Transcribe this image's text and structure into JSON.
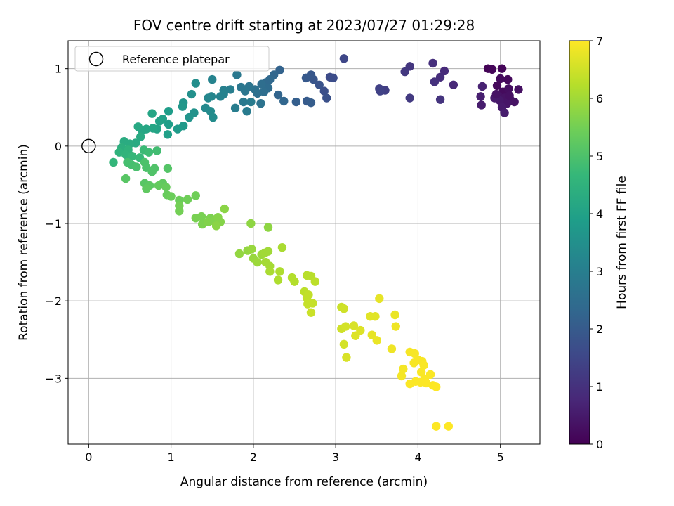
{
  "chart_data": {
    "type": "scatter",
    "title": "FOV centre drift starting at 2023/07/27 01:29:28",
    "xlabel": "Angular distance from reference (arcmin)",
    "ylabel": "Rotation from reference (arcmin)",
    "colorbar_label": "Hours from first FF file",
    "colormap": "viridis",
    "xlim": [
      -0.25,
      5.48
    ],
    "ylim": [
      -3.85,
      1.36
    ],
    "clim": [
      0,
      7
    ],
    "xticks": [
      "0",
      "1",
      "2",
      "3",
      "4",
      "5"
    ],
    "yticks": [
      "1",
      "0",
      "−1",
      "−2",
      "−3"
    ],
    "colorbar_ticks": [
      "0",
      "1",
      "2",
      "3",
      "4",
      "5",
      "6",
      "7"
    ],
    "grid": true,
    "legend": {
      "location": "upper-left",
      "entries": [
        {
          "label": "Reference platepar",
          "marker": "open-circle",
          "x": 0,
          "y": 0
        }
      ]
    },
    "points": [
      {
        "x": 4.85,
        "y": 1.0,
        "c": 0.05
      },
      {
        "x": 4.9,
        "y": 0.99,
        "c": 0.1
      },
      {
        "x": 5.02,
        "y": 1.0,
        "c": 0.1
      },
      {
        "x": 5.09,
        "y": 0.86,
        "c": 0.15
      },
      {
        "x": 5.0,
        "y": 0.87,
        "c": 0.2
      },
      {
        "x": 4.96,
        "y": 0.78,
        "c": 0.15
      },
      {
        "x": 5.03,
        "y": 0.7,
        "c": 0.2
      },
      {
        "x": 5.1,
        "y": 0.74,
        "c": 0.25
      },
      {
        "x": 5.22,
        "y": 0.73,
        "c": 0.3
      },
      {
        "x": 4.98,
        "y": 0.64,
        "c": 0.3
      },
      {
        "x": 5.05,
        "y": 0.62,
        "c": 0.35
      },
      {
        "x": 5.12,
        "y": 0.6,
        "c": 0.4
      },
      {
        "x": 5.17,
        "y": 0.57,
        "c": 0.35
      },
      {
        "x": 5.08,
        "y": 0.55,
        "c": 0.4
      },
      {
        "x": 4.99,
        "y": 0.59,
        "c": 0.45
      },
      {
        "x": 5.02,
        "y": 0.5,
        "c": 0.5
      },
      {
        "x": 5.05,
        "y": 0.43,
        "c": 0.55
      },
      {
        "x": 4.93,
        "y": 0.62,
        "c": 0.5
      },
      {
        "x": 4.77,
        "y": 0.53,
        "c": 0.55
      },
      {
        "x": 4.76,
        "y": 0.64,
        "c": 0.6
      },
      {
        "x": 4.78,
        "y": 0.77,
        "c": 0.65
      },
      {
        "x": 5.11,
        "y": 0.65,
        "c": 0.3
      },
      {
        "x": 4.95,
        "y": 0.67,
        "c": 0.35
      },
      {
        "x": 4.43,
        "y": 0.79,
        "c": 0.8
      },
      {
        "x": 4.32,
        "y": 0.97,
        "c": 0.85
      },
      {
        "x": 4.27,
        "y": 0.89,
        "c": 0.9
      },
      {
        "x": 4.18,
        "y": 1.07,
        "c": 0.95
      },
      {
        "x": 4.2,
        "y": 0.83,
        "c": 1.0
      },
      {
        "x": 4.27,
        "y": 0.6,
        "c": 1.05
      },
      {
        "x": 3.9,
        "y": 1.03,
        "c": 1.1
      },
      {
        "x": 3.84,
        "y": 0.96,
        "c": 1.15
      },
      {
        "x": 3.9,
        "y": 0.62,
        "c": 1.2
      },
      {
        "x": 3.6,
        "y": 0.72,
        "c": 1.3
      },
      {
        "x": 3.53,
        "y": 0.74,
        "c": 1.35
      },
      {
        "x": 3.54,
        "y": 0.71,
        "c": 1.4
      },
      {
        "x": 3.1,
        "y": 1.13,
        "c": 1.5
      },
      {
        "x": 2.93,
        "y": 0.89,
        "c": 1.6
      },
      {
        "x": 2.97,
        "y": 0.88,
        "c": 1.65
      },
      {
        "x": 2.86,
        "y": 0.71,
        "c": 1.7
      },
      {
        "x": 2.89,
        "y": 0.62,
        "c": 1.75
      },
      {
        "x": 2.8,
        "y": 0.79,
        "c": 1.8
      },
      {
        "x": 2.73,
        "y": 0.86,
        "c": 1.85
      },
      {
        "x": 2.7,
        "y": 0.92,
        "c": 1.9
      },
      {
        "x": 2.64,
        "y": 0.88,
        "c": 1.95
      },
      {
        "x": 2.65,
        "y": 0.58,
        "c": 2.0
      },
      {
        "x": 2.7,
        "y": 0.56,
        "c": 2.05
      },
      {
        "x": 2.52,
        "y": 0.57,
        "c": 2.1
      },
      {
        "x": 2.32,
        "y": 0.98,
        "c": 2.2
      },
      {
        "x": 2.3,
        "y": 0.66,
        "c": 2.25
      },
      {
        "x": 2.37,
        "y": 0.58,
        "c": 2.3
      },
      {
        "x": 2.25,
        "y": 0.92,
        "c": 2.3
      },
      {
        "x": 2.2,
        "y": 0.86,
        "c": 2.35
      },
      {
        "x": 2.15,
        "y": 0.82,
        "c": 2.4
      },
      {
        "x": 2.18,
        "y": 0.75,
        "c": 2.45
      },
      {
        "x": 2.1,
        "y": 0.8,
        "c": 2.5
      },
      {
        "x": 2.13,
        "y": 0.7,
        "c": 2.5
      },
      {
        "x": 2.05,
        "y": 0.68,
        "c": 2.55
      },
      {
        "x": 2.02,
        "y": 0.73,
        "c": 2.6
      },
      {
        "x": 2.09,
        "y": 0.55,
        "c": 2.65
      },
      {
        "x": 1.95,
        "y": 0.77,
        "c": 2.7
      },
      {
        "x": 1.9,
        "y": 0.71,
        "c": 2.75
      },
      {
        "x": 1.85,
        "y": 0.76,
        "c": 2.75
      },
      {
        "x": 1.8,
        "y": 0.92,
        "c": 2.8
      },
      {
        "x": 1.88,
        "y": 0.57,
        "c": 2.85
      },
      {
        "x": 1.92,
        "y": 0.45,
        "c": 2.9
      },
      {
        "x": 1.97,
        "y": 0.57,
        "c": 2.9
      },
      {
        "x": 1.78,
        "y": 0.49,
        "c": 2.95
      },
      {
        "x": 1.72,
        "y": 0.73,
        "c": 3.0
      },
      {
        "x": 1.64,
        "y": 0.72,
        "c": 3.05
      },
      {
        "x": 1.6,
        "y": 0.64,
        "c": 3.1
      },
      {
        "x": 1.64,
        "y": 0.67,
        "c": 3.1
      },
      {
        "x": 1.5,
        "y": 0.86,
        "c": 3.15
      },
      {
        "x": 1.49,
        "y": 0.64,
        "c": 3.2
      },
      {
        "x": 1.45,
        "y": 0.62,
        "c": 3.25
      },
      {
        "x": 1.42,
        "y": 0.49,
        "c": 3.3
      },
      {
        "x": 1.48,
        "y": 0.45,
        "c": 3.35
      },
      {
        "x": 1.51,
        "y": 0.37,
        "c": 3.4
      },
      {
        "x": 1.3,
        "y": 0.81,
        "c": 3.45
      },
      {
        "x": 1.25,
        "y": 0.67,
        "c": 3.5
      },
      {
        "x": 1.28,
        "y": 0.43,
        "c": 3.55
      },
      {
        "x": 1.22,
        "y": 0.37,
        "c": 3.6
      },
      {
        "x": 1.15,
        "y": 0.56,
        "c": 3.65
      },
      {
        "x": 1.14,
        "y": 0.51,
        "c": 3.7
      },
      {
        "x": 1.15,
        "y": 0.26,
        "c": 3.75
      },
      {
        "x": 1.08,
        "y": 0.22,
        "c": 3.8
      },
      {
        "x": 0.97,
        "y": 0.45,
        "c": 3.85
      },
      {
        "x": 0.97,
        "y": 0.28,
        "c": 3.9
      },
      {
        "x": 0.96,
        "y": 0.15,
        "c": 3.95
      },
      {
        "x": 0.9,
        "y": 0.35,
        "c": 3.95
      },
      {
        "x": 0.86,
        "y": 0.32,
        "c": 4.0
      },
      {
        "x": 0.83,
        "y": 0.22,
        "c": 4.05
      },
      {
        "x": 0.78,
        "y": 0.23,
        "c": 4.1
      },
      {
        "x": 0.77,
        "y": 0.42,
        "c": 4.1
      },
      {
        "x": 0.7,
        "y": 0.22,
        "c": 4.15
      },
      {
        "x": 0.65,
        "y": 0.2,
        "c": 4.15
      },
      {
        "x": 0.6,
        "y": 0.25,
        "c": 4.2
      },
      {
        "x": 0.63,
        "y": 0.12,
        "c": 4.25
      },
      {
        "x": 0.57,
        "y": 0.04,
        "c": 4.25
      },
      {
        "x": 0.5,
        "y": 0.03,
        "c": 4.3
      },
      {
        "x": 0.43,
        "y": 0.06,
        "c": 4.3
      },
      {
        "x": 0.4,
        "y": -0.02,
        "c": 4.4
      },
      {
        "x": 0.37,
        "y": -0.08,
        "c": 4.5
      },
      {
        "x": 0.48,
        "y": -0.05,
        "c": 4.5
      },
      {
        "x": 0.45,
        "y": -0.11,
        "c": 4.55
      },
      {
        "x": 0.3,
        "y": -0.21,
        "c": 4.6
      },
      {
        "x": 0.53,
        "y": -0.13,
        "c": 4.65
      },
      {
        "x": 0.62,
        "y": -0.15,
        "c": 4.7
      },
      {
        "x": 0.67,
        "y": -0.05,
        "c": 4.75
      },
      {
        "x": 0.73,
        "y": -0.08,
        "c": 4.8
      },
      {
        "x": 0.83,
        "y": -0.06,
        "c": 4.85
      },
      {
        "x": 0.47,
        "y": -0.21,
        "c": 4.9
      },
      {
        "x": 0.52,
        "y": -0.24,
        "c": 4.9
      },
      {
        "x": 0.58,
        "y": -0.27,
        "c": 4.95
      },
      {
        "x": 0.68,
        "y": -0.21,
        "c": 5.0
      },
      {
        "x": 0.7,
        "y": -0.28,
        "c": 5.0
      },
      {
        "x": 0.77,
        "y": -0.33,
        "c": 5.05
      },
      {
        "x": 0.8,
        "y": -0.29,
        "c": 5.05
      },
      {
        "x": 0.96,
        "y": -0.29,
        "c": 5.1
      },
      {
        "x": 0.45,
        "y": -0.42,
        "c": 5.15
      },
      {
        "x": 0.68,
        "y": -0.48,
        "c": 5.15
      },
      {
        "x": 0.74,
        "y": -0.51,
        "c": 5.2
      },
      {
        "x": 0.7,
        "y": -0.55,
        "c": 5.25
      },
      {
        "x": 0.9,
        "y": -0.48,
        "c": 5.25
      },
      {
        "x": 0.85,
        "y": -0.51,
        "c": 5.3
      },
      {
        "x": 0.94,
        "y": -0.53,
        "c": 5.35
      },
      {
        "x": 0.95,
        "y": -0.63,
        "c": 5.35
      },
      {
        "x": 1.0,
        "y": -0.65,
        "c": 5.4
      },
      {
        "x": 1.1,
        "y": -0.7,
        "c": 5.4
      },
      {
        "x": 1.2,
        "y": -0.69,
        "c": 5.45
      },
      {
        "x": 1.3,
        "y": -0.64,
        "c": 5.45
      },
      {
        "x": 1.1,
        "y": -0.77,
        "c": 5.5
      },
      {
        "x": 1.1,
        "y": -0.84,
        "c": 5.5
      },
      {
        "x": 1.3,
        "y": -0.93,
        "c": 5.55
      },
      {
        "x": 1.37,
        "y": -0.91,
        "c": 5.55
      },
      {
        "x": 1.38,
        "y": -1.01,
        "c": 5.6
      },
      {
        "x": 1.48,
        "y": -0.93,
        "c": 5.6
      },
      {
        "x": 1.52,
        "y": -0.97,
        "c": 5.65
      },
      {
        "x": 1.45,
        "y": -0.98,
        "c": 5.65
      },
      {
        "x": 1.57,
        "y": -0.92,
        "c": 5.7
      },
      {
        "x": 1.6,
        "y": -0.98,
        "c": 5.7
      },
      {
        "x": 1.65,
        "y": -0.81,
        "c": 5.75
      },
      {
        "x": 1.55,
        "y": -1.03,
        "c": 5.75
      },
      {
        "x": 1.97,
        "y": -1.0,
        "c": 5.8
      },
      {
        "x": 2.18,
        "y": -1.05,
        "c": 5.8
      },
      {
        "x": 1.83,
        "y": -1.39,
        "c": 5.85
      },
      {
        "x": 1.93,
        "y": -1.35,
        "c": 5.85
      },
      {
        "x": 1.98,
        "y": -1.33,
        "c": 5.9
      },
      {
        "x": 2.0,
        "y": -1.45,
        "c": 5.9
      },
      {
        "x": 2.05,
        "y": -1.5,
        "c": 5.95
      },
      {
        "x": 2.1,
        "y": -1.4,
        "c": 5.95
      },
      {
        "x": 2.14,
        "y": -1.38,
        "c": 6.0
      },
      {
        "x": 2.18,
        "y": -1.36,
        "c": 6.0
      },
      {
        "x": 2.15,
        "y": -1.5,
        "c": 6.05
      },
      {
        "x": 2.2,
        "y": -1.55,
        "c": 6.05
      },
      {
        "x": 2.2,
        "y": -1.62,
        "c": 6.1
      },
      {
        "x": 2.35,
        "y": -1.31,
        "c": 6.1
      },
      {
        "x": 2.32,
        "y": -1.62,
        "c": 6.15
      },
      {
        "x": 2.3,
        "y": -1.73,
        "c": 6.15
      },
      {
        "x": 2.47,
        "y": -1.7,
        "c": 6.2
      },
      {
        "x": 2.5,
        "y": -1.75,
        "c": 6.2
      },
      {
        "x": 2.65,
        "y": -1.67,
        "c": 6.25
      },
      {
        "x": 2.7,
        "y": -1.68,
        "c": 6.25
      },
      {
        "x": 2.75,
        "y": -1.75,
        "c": 6.3
      },
      {
        "x": 2.62,
        "y": -1.88,
        "c": 6.3
      },
      {
        "x": 2.67,
        "y": -1.92,
        "c": 6.35
      },
      {
        "x": 2.65,
        "y": -1.96,
        "c": 6.35
      },
      {
        "x": 2.72,
        "y": -2.03,
        "c": 6.4
      },
      {
        "x": 2.66,
        "y": -2.04,
        "c": 6.4
      },
      {
        "x": 2.7,
        "y": -2.15,
        "c": 6.45
      },
      {
        "x": 3.07,
        "y": -2.08,
        "c": 6.45
      },
      {
        "x": 3.1,
        "y": -2.1,
        "c": 6.5
      },
      {
        "x": 3.07,
        "y": -2.36,
        "c": 6.5
      },
      {
        "x": 3.12,
        "y": -2.33,
        "c": 6.55
      },
      {
        "x": 3.1,
        "y": -2.56,
        "c": 6.55
      },
      {
        "x": 3.13,
        "y": -2.73,
        "c": 6.6
      },
      {
        "x": 3.22,
        "y": -2.32,
        "c": 6.6
      },
      {
        "x": 3.3,
        "y": -2.38,
        "c": 6.65
      },
      {
        "x": 3.24,
        "y": -2.45,
        "c": 6.65
      },
      {
        "x": 3.42,
        "y": -2.2,
        "c": 6.7
      },
      {
        "x": 3.48,
        "y": -2.2,
        "c": 6.7
      },
      {
        "x": 3.53,
        "y": -1.97,
        "c": 6.75
      },
      {
        "x": 3.44,
        "y": -2.44,
        "c": 6.75
      },
      {
        "x": 3.5,
        "y": -2.51,
        "c": 6.8
      },
      {
        "x": 3.72,
        "y": -2.18,
        "c": 6.8
      },
      {
        "x": 3.73,
        "y": -2.33,
        "c": 6.85
      },
      {
        "x": 3.68,
        "y": -2.62,
        "c": 6.85
      },
      {
        "x": 3.82,
        "y": -2.88,
        "c": 6.9
      },
      {
        "x": 3.8,
        "y": -2.97,
        "c": 6.9
      },
      {
        "x": 3.9,
        "y": -2.66,
        "c": 6.92
      },
      {
        "x": 3.96,
        "y": -2.68,
        "c": 6.93
      },
      {
        "x": 3.95,
        "y": -2.8,
        "c": 6.94
      },
      {
        "x": 4.0,
        "y": -2.76,
        "c": 6.95
      },
      {
        "x": 4.05,
        "y": -2.78,
        "c": 6.95
      },
      {
        "x": 4.07,
        "y": -2.83,
        "c": 6.96
      },
      {
        "x": 4.04,
        "y": -2.92,
        "c": 6.96
      },
      {
        "x": 4.08,
        "y": -3.01,
        "c": 6.97
      },
      {
        "x": 4.15,
        "y": -2.95,
        "c": 6.97
      },
      {
        "x": 4.03,
        "y": -3.05,
        "c": 6.98
      },
      {
        "x": 3.97,
        "y": -3.04,
        "c": 6.98
      },
      {
        "x": 3.9,
        "y": -3.07,
        "c": 6.98
      },
      {
        "x": 4.1,
        "y": -3.06,
        "c": 6.99
      },
      {
        "x": 4.18,
        "y": -3.09,
        "c": 6.99
      },
      {
        "x": 4.22,
        "y": -3.11,
        "c": 7.0
      },
      {
        "x": 4.22,
        "y": -3.62,
        "c": 7.0
      },
      {
        "x": 4.37,
        "y": -3.62,
        "c": 7.0
      }
    ]
  }
}
